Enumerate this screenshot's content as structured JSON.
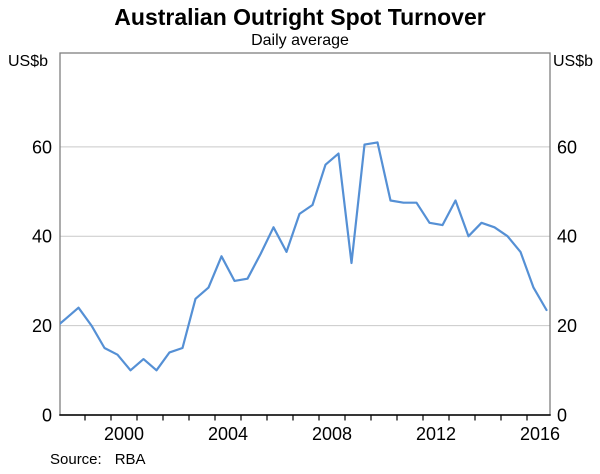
{
  "header": {
    "title": "Australian Outright Spot Turnover",
    "subtitle": "Daily average"
  },
  "axes": {
    "left_unit": "US$b",
    "right_unit": "US$b"
  },
  "footer": {
    "source_label": "Source:",
    "source_value": "RBA"
  },
  "colors": {
    "line": "#5590d5",
    "gridline": "#c9c9c9",
    "frame": "#7f7f7f",
    "axis": "#000000",
    "text": "#000000"
  },
  "chart_data": {
    "type": "line",
    "title": "Australian Outright Spot Turnover",
    "subtitle": "Daily average",
    "ylabel_left": "US$b",
    "ylabel_right": "US$b",
    "ylim": [
      0,
      81
    ],
    "yticks": [
      0,
      20,
      40,
      60
    ],
    "grid": "horizontal-only",
    "legend": "none",
    "frequency": "semi-annual",
    "x_minor_tick_years": [
      1999,
      2000,
      2001,
      2002,
      2003,
      2004,
      2005,
      2006,
      2007,
      2008,
      2009,
      2010,
      2011,
      2012,
      2013,
      2014,
      2015,
      2016
    ],
    "x_label_years": [
      2000,
      2004,
      2008,
      2012,
      2016
    ],
    "series": [
      {
        "name": "Australian outright spot turnover, daily average (US$b)",
        "x": [
          1997.5,
          1998.0,
          1998.5,
          1999.0,
          1999.5,
          2000.0,
          2000.5,
          2001.0,
          2001.5,
          2002.0,
          2002.5,
          2003.0,
          2003.5,
          2004.0,
          2004.5,
          2005.0,
          2005.5,
          2006.0,
          2006.5,
          2007.0,
          2007.5,
          2008.0,
          2008.5,
          2009.0,
          2009.5,
          2010.0,
          2010.5,
          2011.0,
          2011.5,
          2012.0,
          2012.5,
          2013.0,
          2013.5,
          2014.0,
          2014.5,
          2015.0,
          2015.5,
          2016.0,
          2016.5
        ],
        "values": [
          19,
          21.5,
          24,
          20,
          15,
          13.5,
          10,
          12.5,
          10,
          14,
          15,
          26,
          28.5,
          35.5,
          30,
          30.5,
          36,
          42,
          36.5,
          45,
          47,
          56,
          58.5,
          34,
          60.5,
          61,
          48,
          47.5,
          47.5,
          43,
          42.5,
          48,
          40,
          43,
          42,
          40,
          36.5,
          28.5,
          23.5
        ]
      }
    ],
    "source": "RBA"
  }
}
